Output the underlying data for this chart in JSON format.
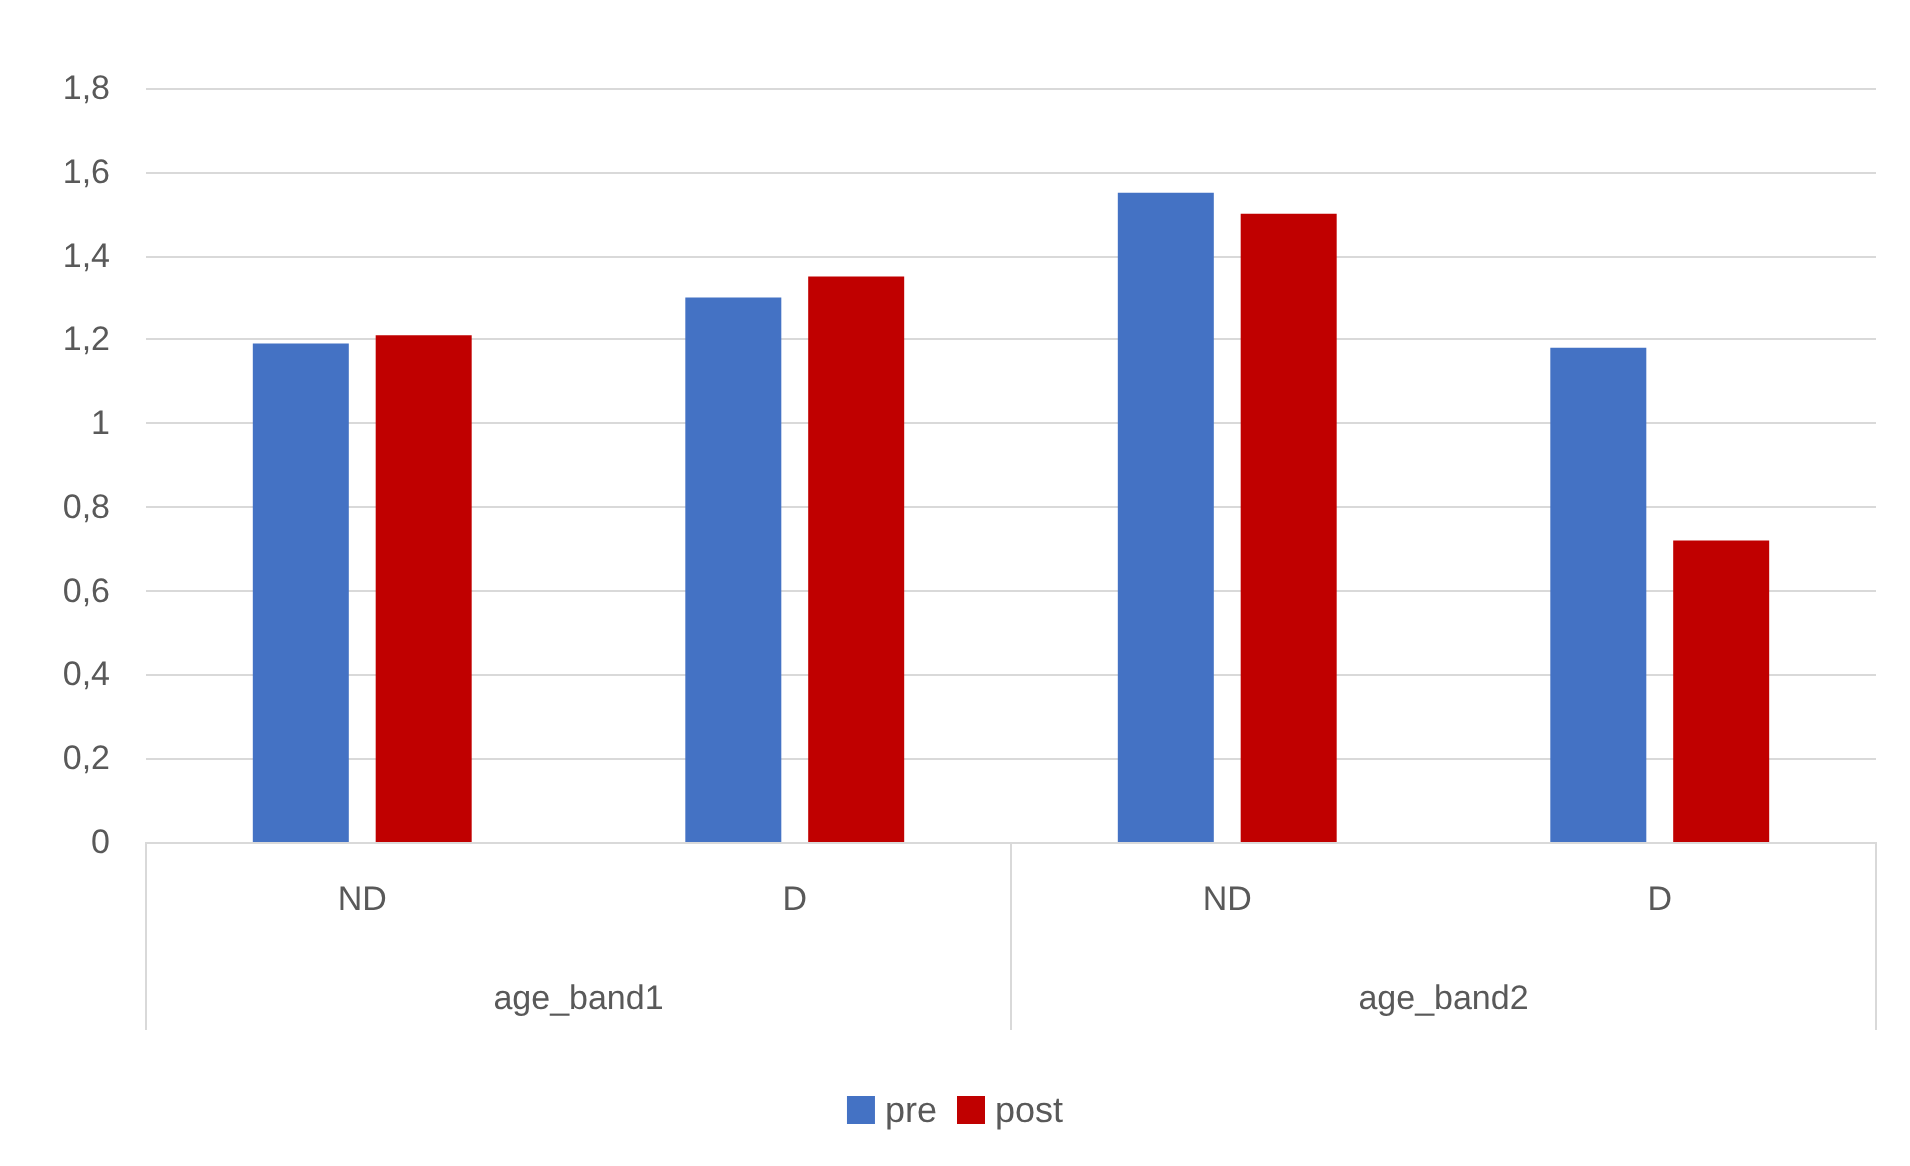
{
  "chart_data": {
    "type": "bar",
    "categories": [
      "ND",
      "D",
      "ND",
      "D"
    ],
    "series": [
      {
        "name": "pre",
        "color": "#4472c4",
        "values": [
          1.19,
          1.3,
          1.55,
          1.18
        ]
      },
      {
        "name": "post",
        "color": "#c00000",
        "values": [
          1.21,
          1.35,
          1.5,
          0.72
        ]
      }
    ],
    "ylim": [
      0,
      1.8
    ],
    "yticks": [
      0,
      {
        "value": 0.2,
        "label": "0,2"
      },
      {
        "value": 0.4,
        "label": "0,4"
      },
      {
        "value": 0.6,
        "label": "0,6"
      },
      {
        "value": 0.8,
        "label": "0,8"
      },
      1,
      {
        "value": 1.2,
        "label": "1,2"
      },
      {
        "value": 1.4,
        "label": "1,4"
      },
      {
        "value": 1.6,
        "label": "1,6"
      },
      {
        "value": 1.8,
        "label": "1,8"
      }
    ],
    "annotations": [
      "age_band1",
      "age_band2"
    ],
    "grid": "y",
    "legend": "bottom"
  }
}
